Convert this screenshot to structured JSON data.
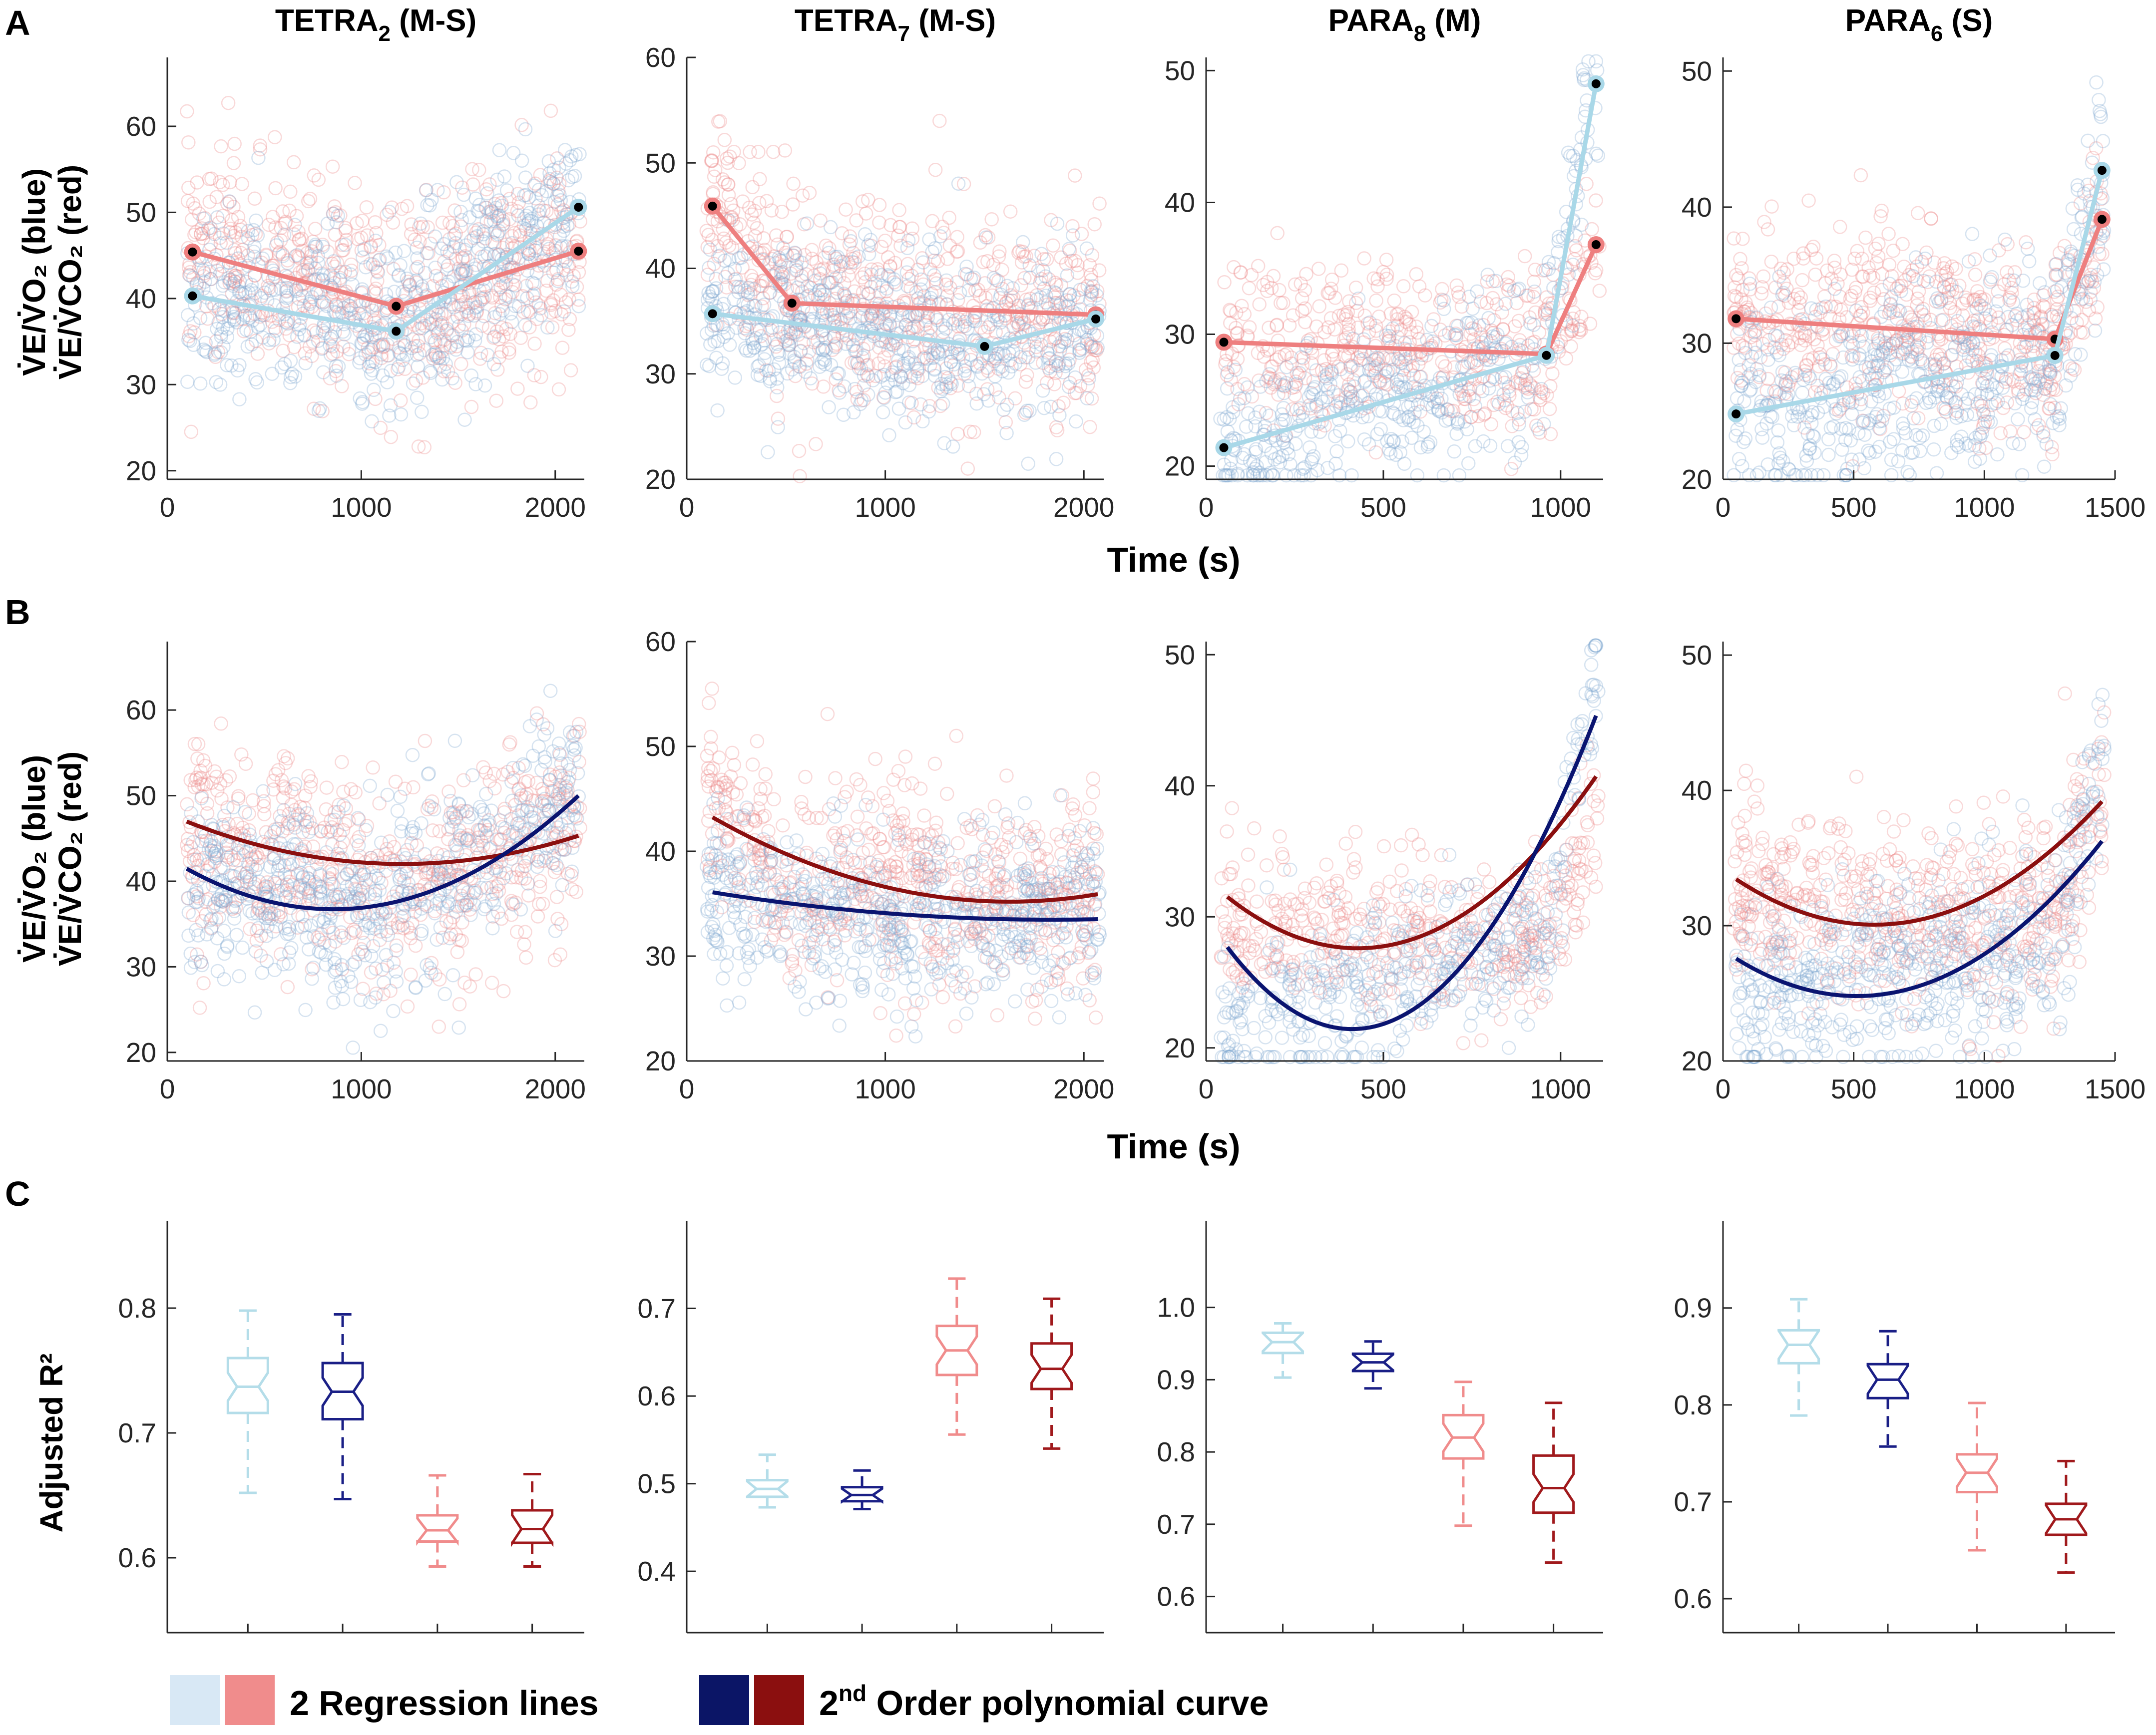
{
  "panel_letters": {
    "a": "A",
    "b": "B",
    "c": "C"
  },
  "colors": {
    "vo2_points": "#7fa7cf",
    "vco2_points": "#ec8a8a",
    "reg_vo2": "#a9d8e8",
    "reg_vco2": "#ee7f7f",
    "poly_vo2": "#0a1470",
    "poly_vco2": "#8b0f0f",
    "box_reg_vo2": "#b4dde9",
    "box_poly_vo2": "#1a1f86",
    "box_reg_vco2": "#f08c8c",
    "box_poly_vco2": "#a0191c",
    "legend_reg_vo2": "#d8e8f5",
    "legend_reg_vco2": "#f08c8c",
    "legend_poly_vo2": "#0b1566",
    "legend_poly_vco2": "#8b0f0f"
  },
  "labels": {
    "ylabel_line1": "V̇E/V̇O₂ (blue)",
    "ylabel_line2": "V̇E/V̇CO₂ (red)",
    "xlabel": "Time (s)",
    "ylabel_c": "Adjusted R²"
  },
  "legend": {
    "reg_label": "2 Regression lines",
    "poly_label_pre": "2",
    "poly_label_sup": "nd",
    "poly_label_post": " Order polynomial curve"
  },
  "chart_data": [
    {
      "id": "tetra2",
      "type": "scatter",
      "title_main": "TETRA",
      "title_sub": "2",
      "title_suffix": " (M-S)",
      "xlim": [
        0,
        2150
      ],
      "xticks": [
        0,
        1000,
        2000
      ],
      "ylim": [
        19,
        68
      ],
      "yticks": [
        20,
        30,
        40,
        50,
        60
      ],
      "regression_vo2": {
        "x": [
          130,
          1180,
          2120
        ],
        "y": [
          40.3,
          36.2,
          50.6
        ]
      },
      "regression_vco2": {
        "x": [
          130,
          1180,
          2120
        ],
        "y": [
          45.4,
          39.1,
          45.5
        ]
      },
      "poly_vo2": {
        "coeffs": [
          42.8,
          -0.0142,
          8.3e-06
        ],
        "x_range": [
          100,
          2120
        ]
      },
      "poly_vco2": {
        "coeffs": [
          47.9,
          -0.0097,
          4e-06
        ],
        "x_range": [
          100,
          2120
        ]
      },
      "scatter_profile": {
        "n": 600,
        "x_range": [
          100,
          2130
        ],
        "vo2_spread": 5.5,
        "vco2_spread": 6.0
      }
    },
    {
      "id": "tetra7",
      "type": "scatter",
      "title_main": "TETRA",
      "title_sub": "7",
      "title_suffix": " (M-S)",
      "xlim": [
        0,
        2100
      ],
      "xticks": [
        0,
        1000,
        2000
      ],
      "ylim": [
        20,
        60
      ],
      "yticks": [
        20,
        30,
        40,
        50,
        60
      ],
      "regression_vo2": {
        "x": [
          130,
          1500,
          2060
        ],
        "y": [
          35.7,
          32.6,
          35.2
        ]
      },
      "regression_vco2": {
        "x": [
          130,
          530,
          2060
        ],
        "y": [
          45.9,
          36.7,
          35.6
        ]
      },
      "poly_vo2": {
        "coeffs": [
          36.5,
          -0.0033,
          9e-07
        ],
        "x_range": [
          130,
          2070
        ]
      },
      "poly_vco2": {
        "coeffs": [
          44.7,
          -0.0117,
          3.6e-06
        ],
        "x_range": [
          130,
          2070
        ]
      },
      "scatter_profile": {
        "n": 600,
        "x_range": [
          100,
          2080
        ],
        "vo2_spread": 4.0,
        "vco2_spread": 5.0
      }
    },
    {
      "id": "para8",
      "type": "scatter",
      "title_main": "PARA",
      "title_sub": "8",
      "title_suffix": " (M)",
      "xlim": [
        0,
        1120
      ],
      "xticks": [
        0,
        500,
        1000
      ],
      "ylim": [
        19,
        51
      ],
      "yticks": [
        20,
        30,
        40,
        50
      ],
      "regression_vo2": {
        "x": [
          50,
          960,
          1100
        ],
        "y": [
          21.4,
          28.4,
          49.0
        ]
      },
      "regression_vco2": {
        "x": [
          50,
          960,
          1100
        ],
        "y": [
          29.4,
          28.5,
          36.8
        ]
      },
      "poly_vo2": {
        "coeffs": [
          30.0,
          -0.0416,
          5.05e-05
        ],
        "x_range": [
          60,
          1100
        ]
      },
      "poly_vco2": {
        "coeffs": [
          32.9,
          -0.0248,
          2.9e-05
        ],
        "x_range": [
          60,
          1100
        ]
      },
      "scatter_profile": {
        "n": 450,
        "x_range": [
          40,
          1110
        ],
        "vo2_spread": 3.0,
        "vco2_spread": 3.0
      }
    },
    {
      "id": "para6",
      "type": "scatter",
      "title_main": "PARA",
      "title_sub": "6",
      "title_suffix": " (S)",
      "xlim": [
        0,
        1500
      ],
      "xticks": [
        0,
        500,
        1000,
        1500
      ],
      "ylim": [
        20,
        51
      ],
      "yticks": [
        20,
        30,
        40,
        50
      ],
      "regression_vo2": {
        "x": [
          50,
          1270,
          1450
        ],
        "y": [
          24.8,
          29.1,
          42.7
        ]
      },
      "regression_vco2": {
        "x": [
          50,
          1270,
          1450
        ],
        "y": [
          31.8,
          30.3,
          39.1
        ]
      },
      "poly_vo2": {
        "coeffs": [
          28.2,
          -0.0133,
          1.3e-05
        ],
        "x_range": [
          50,
          1450
        ]
      },
      "poly_vco2": {
        "coeffs": [
          34.1,
          -0.0139,
          1.2e-05
        ],
        "x_range": [
          50,
          1450
        ]
      },
      "scatter_profile": {
        "n": 550,
        "x_range": [
          40,
          1460
        ],
        "vo2_spread": 3.5,
        "vco2_spread": 3.5
      }
    },
    {
      "id": "box_tetra2",
      "type": "box",
      "ylim": [
        0.54,
        0.87
      ],
      "yticks": [
        0.6,
        0.7,
        0.8
      ],
      "tick_format": "1",
      "boxes": [
        {
          "series": "reg_vo2",
          "whisker_low": 0.652,
          "q1": 0.716,
          "median": 0.737,
          "q3": 0.76,
          "whisker_high": 0.798
        },
        {
          "series": "poly_vo2",
          "whisker_low": 0.647,
          "q1": 0.711,
          "median": 0.733,
          "q3": 0.756,
          "whisker_high": 0.795
        },
        {
          "series": "reg_vco2",
          "whisker_low": 0.593,
          "q1": 0.613,
          "median": 0.622,
          "q3": 0.634,
          "whisker_high": 0.666
        },
        {
          "series": "poly_vco2",
          "whisker_low": 0.593,
          "q1": 0.612,
          "median": 0.623,
          "q3": 0.638,
          "whisker_high": 0.667
        }
      ]
    },
    {
      "id": "box_tetra7",
      "type": "box",
      "ylim": [
        0.33,
        0.8
      ],
      "yticks": [
        0.4,
        0.5,
        0.6,
        0.7
      ],
      "tick_format": "1",
      "boxes": [
        {
          "series": "reg_vo2",
          "whisker_low": 0.473,
          "q1": 0.485,
          "median": 0.494,
          "q3": 0.504,
          "whisker_high": 0.533
        },
        {
          "series": "poly_vo2",
          "whisker_low": 0.471,
          "q1": 0.48,
          "median": 0.487,
          "q3": 0.496,
          "whisker_high": 0.515
        },
        {
          "series": "reg_vco2",
          "whisker_low": 0.556,
          "q1": 0.624,
          "median": 0.652,
          "q3": 0.68,
          "whisker_high": 0.734
        },
        {
          "series": "poly_vco2",
          "whisker_low": 0.54,
          "q1": 0.608,
          "median": 0.631,
          "q3": 0.66,
          "whisker_high": 0.711
        }
      ]
    },
    {
      "id": "box_para8",
      "type": "box",
      "ylim": [
        0.55,
        1.12
      ],
      "yticks": [
        0.6,
        0.7,
        0.8,
        0.9,
        1.0
      ],
      "tick_format": "1",
      "boxes": [
        {
          "series": "reg_vo2",
          "whisker_low": 0.903,
          "q1": 0.937,
          "median": 0.952,
          "q3": 0.965,
          "whisker_high": 0.978
        },
        {
          "series": "poly_vo2",
          "whisker_low": 0.888,
          "q1": 0.912,
          "median": 0.924,
          "q3": 0.936,
          "whisker_high": 0.953
        },
        {
          "series": "reg_vco2",
          "whisker_low": 0.698,
          "q1": 0.791,
          "median": 0.82,
          "q3": 0.851,
          "whisker_high": 0.897
        },
        {
          "series": "poly_vco2",
          "whisker_low": 0.647,
          "q1": 0.716,
          "median": 0.75,
          "q3": 0.795,
          "whisker_high": 0.868
        }
      ]
    },
    {
      "id": "box_para6",
      "type": "box",
      "ylim": [
        0.565,
        0.99
      ],
      "yticks": [
        0.6,
        0.7,
        0.8,
        0.9
      ],
      "tick_format": "1",
      "boxes": [
        {
          "series": "reg_vo2",
          "whisker_low": 0.789,
          "q1": 0.843,
          "median": 0.862,
          "q3": 0.877,
          "whisker_high": 0.909
        },
        {
          "series": "poly_vo2",
          "whisker_low": 0.757,
          "q1": 0.807,
          "median": 0.826,
          "q3": 0.842,
          "whisker_high": 0.876
        },
        {
          "series": "reg_vco2",
          "whisker_low": 0.65,
          "q1": 0.71,
          "median": 0.73,
          "q3": 0.749,
          "whisker_high": 0.802
        },
        {
          "series": "poly_vco2",
          "whisker_low": 0.627,
          "q1": 0.666,
          "median": 0.682,
          "q3": 0.698,
          "whisker_high": 0.742
        }
      ]
    }
  ]
}
